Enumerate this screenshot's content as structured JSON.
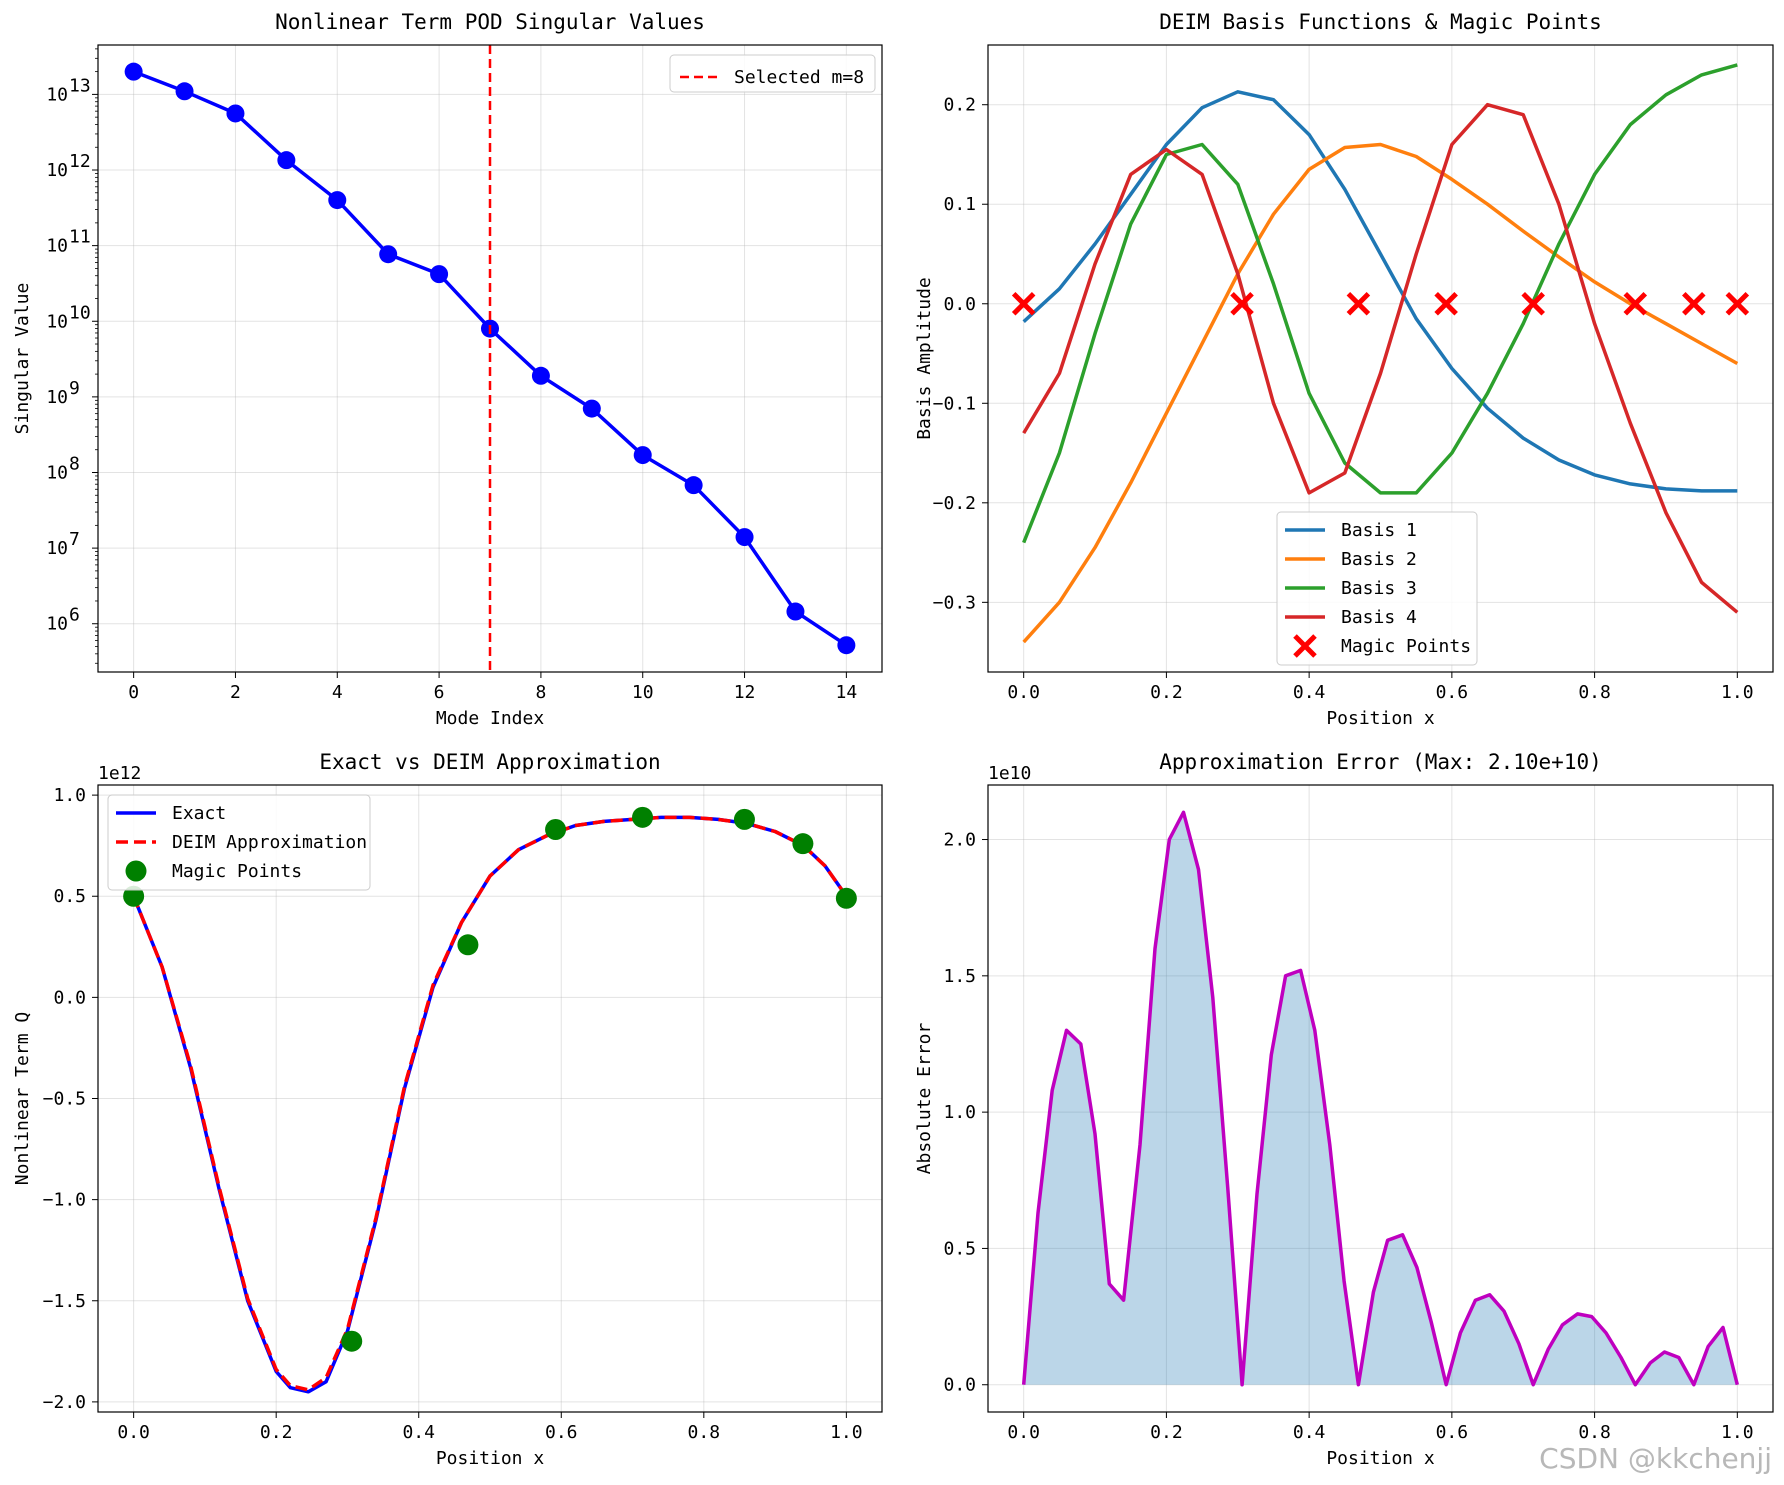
{
  "watermark": "CSDN @kkchenjj",
  "chart_data": [
    {
      "type": "line",
      "title": "Nonlinear Term POD Singular Values",
      "xlabel": "Mode Index",
      "ylabel": "Singular Value",
      "yscale": "log",
      "xlim": [
        -0.7,
        14.7
      ],
      "ylim": [
        230000,
        45000000000000
      ],
      "xticks": [
        0,
        2,
        4,
        6,
        8,
        10,
        12,
        14
      ],
      "yticks": [
        1000000,
        10000000,
        100000000,
        1000000000,
        10000000000,
        100000000000,
        1000000000000,
        10000000000000
      ],
      "ytick_labels": [
        {
          "base": "10",
          "exp": "6"
        },
        {
          "base": "10",
          "exp": "7"
        },
        {
          "base": "10",
          "exp": "8"
        },
        {
          "base": "10",
          "exp": "9"
        },
        {
          "base": "10",
          "exp": "10"
        },
        {
          "base": "10",
          "exp": "11"
        },
        {
          "base": "10",
          "exp": "12"
        },
        {
          "base": "10",
          "exp": "13"
        }
      ],
      "grid": true,
      "legend_position": "upper right",
      "series": [
        {
          "color": "#0000ff",
          "marker": "circle",
          "x": [
            0,
            1,
            2,
            3,
            4,
            5,
            6,
            7,
            8,
            9,
            10,
            11,
            12,
            13,
            14
          ],
          "values": [
            20000000000000,
            11000000000000,
            5600000000000,
            1350000000000,
            400000000000,
            77000000000,
            42000000000,
            8000000000,
            1900000000,
            700000000,
            170000000,
            68000000,
            14000000,
            1450000,
            520000
          ]
        }
      ],
      "vline": {
        "x": 7,
        "color": "#ff0000",
        "label": "Selected m=8"
      }
    },
    {
      "type": "line",
      "title": "DEIM Basis Functions & Magic Points",
      "xlabel": "Position x",
      "ylabel": "Basis Amplitude",
      "xlim": [
        -0.05,
        1.05
      ],
      "ylim": [
        -0.37,
        0.26
      ],
      "xticks": [
        0.0,
        0.2,
        0.4,
        0.6,
        0.8,
        1.0
      ],
      "xtick_labels": [
        "0.0",
        "0.2",
        "0.4",
        "0.6",
        "0.8",
        "1.0"
      ],
      "yticks": [
        -0.3,
        -0.2,
        -0.1,
        0.0,
        0.1,
        0.2
      ],
      "ytick_labels": [
        "−0.3",
        "−0.2",
        "−0.1",
        "0.0",
        "0.1",
        "0.2"
      ],
      "grid": true,
      "legend_position": "lower center",
      "series": [
        {
          "name": "Basis 1",
          "color": "#1f77b4",
          "x": [
            0,
            0.05,
            0.1,
            0.15,
            0.2,
            0.25,
            0.3,
            0.35,
            0.4,
            0.45,
            0.5,
            0.55,
            0.6,
            0.65,
            0.7,
            0.75,
            0.8,
            0.85,
            0.9,
            0.95,
            1.0
          ],
          "values": [
            -0.018,
            0.015,
            0.06,
            0.11,
            0.16,
            0.197,
            0.213,
            0.205,
            0.17,
            0.115,
            0.05,
            -0.015,
            -0.065,
            -0.105,
            -0.135,
            -0.157,
            -0.172,
            -0.181,
            -0.186,
            -0.188,
            -0.188
          ]
        },
        {
          "name": "Basis 2",
          "color": "#ff7f0e",
          "x": [
            0,
            0.05,
            0.1,
            0.15,
            0.2,
            0.25,
            0.3,
            0.35,
            0.4,
            0.45,
            0.5,
            0.55,
            0.6,
            0.65,
            0.7,
            0.75,
            0.8,
            0.85,
            0.9,
            0.95,
            1.0
          ],
          "values": [
            -0.34,
            -0.3,
            -0.245,
            -0.18,
            -0.11,
            -0.04,
            0.03,
            0.09,
            0.135,
            0.157,
            0.16,
            0.148,
            0.125,
            0.1,
            0.073,
            0.047,
            0.022,
            0.0,
            -0.02,
            -0.04,
            -0.06
          ]
        },
        {
          "name": "Basis 3",
          "color": "#2ca02c",
          "x": [
            0,
            0.05,
            0.1,
            0.15,
            0.2,
            0.25,
            0.3,
            0.35,
            0.4,
            0.45,
            0.5,
            0.55,
            0.6,
            0.65,
            0.7,
            0.75,
            0.8,
            0.85,
            0.9,
            0.95,
            1.0
          ],
          "values": [
            -0.24,
            -0.15,
            -0.03,
            0.08,
            0.15,
            0.16,
            0.12,
            0.02,
            -0.09,
            -0.16,
            -0.19,
            -0.19,
            -0.15,
            -0.09,
            -0.02,
            0.06,
            0.13,
            0.18,
            0.21,
            0.23,
            0.24
          ]
        },
        {
          "name": "Basis 4",
          "color": "#d62728",
          "x": [
            0,
            0.05,
            0.1,
            0.15,
            0.2,
            0.25,
            0.3,
            0.35,
            0.4,
            0.45,
            0.5,
            0.55,
            0.6,
            0.65,
            0.7,
            0.75,
            0.8,
            0.85,
            0.9,
            0.95,
            1.0
          ],
          "values": [
            -0.13,
            -0.07,
            0.04,
            0.13,
            0.155,
            0.13,
            0.03,
            -0.1,
            -0.19,
            -0.17,
            -0.07,
            0.05,
            0.16,
            0.2,
            0.19,
            0.1,
            -0.02,
            -0.12,
            -0.21,
            -0.28,
            -0.31
          ]
        }
      ],
      "magic_points": {
        "name": "Magic Points",
        "color": "#ff0000",
        "marker": "x",
        "x": [
          0.0,
          0.306,
          0.469,
          0.592,
          0.714,
          0.857,
          0.939,
          1.0
        ],
        "y": [
          0,
          0,
          0,
          0,
          0,
          0,
          0,
          0
        ]
      }
    },
    {
      "type": "line",
      "title": "Exact vs DEIM Approximation",
      "xlabel": "Position x",
      "ylabel": "Nonlinear Term Q",
      "offset_label": "1e12",
      "xlim": [
        -0.05,
        1.05
      ],
      "ylim": [
        -2.05,
        1.05
      ],
      "xticks": [
        0.0,
        0.2,
        0.4,
        0.6,
        0.8,
        1.0
      ],
      "xtick_labels": [
        "0.0",
        "0.2",
        "0.4",
        "0.6",
        "0.8",
        "1.0"
      ],
      "yticks": [
        -2.0,
        -1.5,
        -1.0,
        -0.5,
        0.0,
        0.5,
        1.0
      ],
      "ytick_labels": [
        "−2.0",
        "−1.5",
        "−1.0",
        "−0.5",
        "0.0",
        "0.5",
        "1.0"
      ],
      "grid": true,
      "legend_position": "upper left",
      "series": [
        {
          "name": "Exact",
          "color": "#0000ff",
          "style": "solid",
          "x": [
            0,
            0.04,
            0.08,
            0.12,
            0.16,
            0.2,
            0.22,
            0.245,
            0.27,
            0.3,
            0.34,
            0.38,
            0.42,
            0.46,
            0.5,
            0.54,
            0.58,
            0.62,
            0.66,
            0.7,
            0.74,
            0.78,
            0.82,
            0.86,
            0.9,
            0.94,
            0.97,
            1.0
          ],
          "values": [
            0.5,
            0.15,
            -0.35,
            -0.95,
            -1.5,
            -1.85,
            -1.93,
            -1.95,
            -1.9,
            -1.65,
            -1.1,
            -0.45,
            0.05,
            0.37,
            0.6,
            0.73,
            0.8,
            0.85,
            0.87,
            0.88,
            0.89,
            0.89,
            0.88,
            0.86,
            0.82,
            0.75,
            0.65,
            0.5
          ]
        },
        {
          "name": "DEIM Approximation",
          "color": "#ff0000",
          "style": "dashed",
          "x": [
            0,
            0.04,
            0.08,
            0.12,
            0.16,
            0.2,
            0.22,
            0.245,
            0.27,
            0.3,
            0.34,
            0.38,
            0.42,
            0.46,
            0.5,
            0.54,
            0.58,
            0.62,
            0.66,
            0.7,
            0.74,
            0.78,
            0.82,
            0.86,
            0.9,
            0.94,
            0.97,
            1.0
          ],
          "values": [
            0.5,
            0.15,
            -0.34,
            -0.94,
            -1.49,
            -1.84,
            -1.92,
            -1.94,
            -1.88,
            -1.64,
            -1.09,
            -0.44,
            0.06,
            0.37,
            0.6,
            0.73,
            0.8,
            0.85,
            0.87,
            0.88,
            0.89,
            0.89,
            0.88,
            0.86,
            0.82,
            0.75,
            0.65,
            0.5
          ]
        }
      ],
      "magic_points": {
        "name": "Magic Points",
        "color": "#008000",
        "marker": "circle",
        "x": [
          0.0,
          0.306,
          0.469,
          0.592,
          0.714,
          0.857,
          0.939,
          1.0
        ],
        "y": [
          0.5,
          -1.7,
          0.26,
          0.83,
          0.89,
          0.88,
          0.76,
          0.49
        ]
      }
    },
    {
      "type": "area",
      "title": "Approximation Error (Max: 2.10e+10)",
      "xlabel": "Position x",
      "ylabel": "Absolute Error",
      "offset_label": "1e10",
      "xlim": [
        -0.05,
        1.05
      ],
      "ylim": [
        -0.1,
        2.2
      ],
      "xticks": [
        0.0,
        0.2,
        0.4,
        0.6,
        0.8,
        1.0
      ],
      "xtick_labels": [
        "0.0",
        "0.2",
        "0.4",
        "0.6",
        "0.8",
        "1.0"
      ],
      "yticks": [
        0.0,
        0.5,
        1.0,
        1.5,
        2.0
      ],
      "ytick_labels": [
        "0.0",
        "0.5",
        "1.0",
        "1.5",
        "2.0"
      ],
      "grid": true,
      "fill_color": "#1f77b4",
      "series": [
        {
          "color": "#bf00bf",
          "x": [
            0.0,
            0.02,
            0.04,
            0.06,
            0.08,
            0.1,
            0.12,
            0.14,
            0.163,
            0.184,
            0.204,
            0.224,
            0.245,
            0.265,
            0.286,
            0.306,
            0.327,
            0.347,
            0.367,
            0.388,
            0.408,
            0.429,
            0.449,
            0.469,
            0.49,
            0.51,
            0.531,
            0.551,
            0.571,
            0.592,
            0.612,
            0.633,
            0.653,
            0.673,
            0.694,
            0.714,
            0.735,
            0.755,
            0.776,
            0.796,
            0.816,
            0.837,
            0.857,
            0.878,
            0.898,
            0.918,
            0.939,
            0.959,
            0.98,
            1.0
          ],
          "values": [
            0.0,
            0.63,
            1.08,
            1.3,
            1.25,
            0.92,
            0.37,
            0.31,
            0.88,
            1.6,
            2.0,
            2.1,
            1.89,
            1.42,
            0.72,
            0.0,
            0.7,
            1.21,
            1.5,
            1.52,
            1.3,
            0.88,
            0.38,
            0.0,
            0.34,
            0.53,
            0.55,
            0.43,
            0.23,
            0.0,
            0.19,
            0.31,
            0.33,
            0.27,
            0.15,
            0.0,
            0.13,
            0.22,
            0.26,
            0.25,
            0.19,
            0.1,
            0.0,
            0.08,
            0.12,
            0.1,
            0.0,
            0.14,
            0.21,
            0.0
          ]
        }
      ]
    }
  ]
}
